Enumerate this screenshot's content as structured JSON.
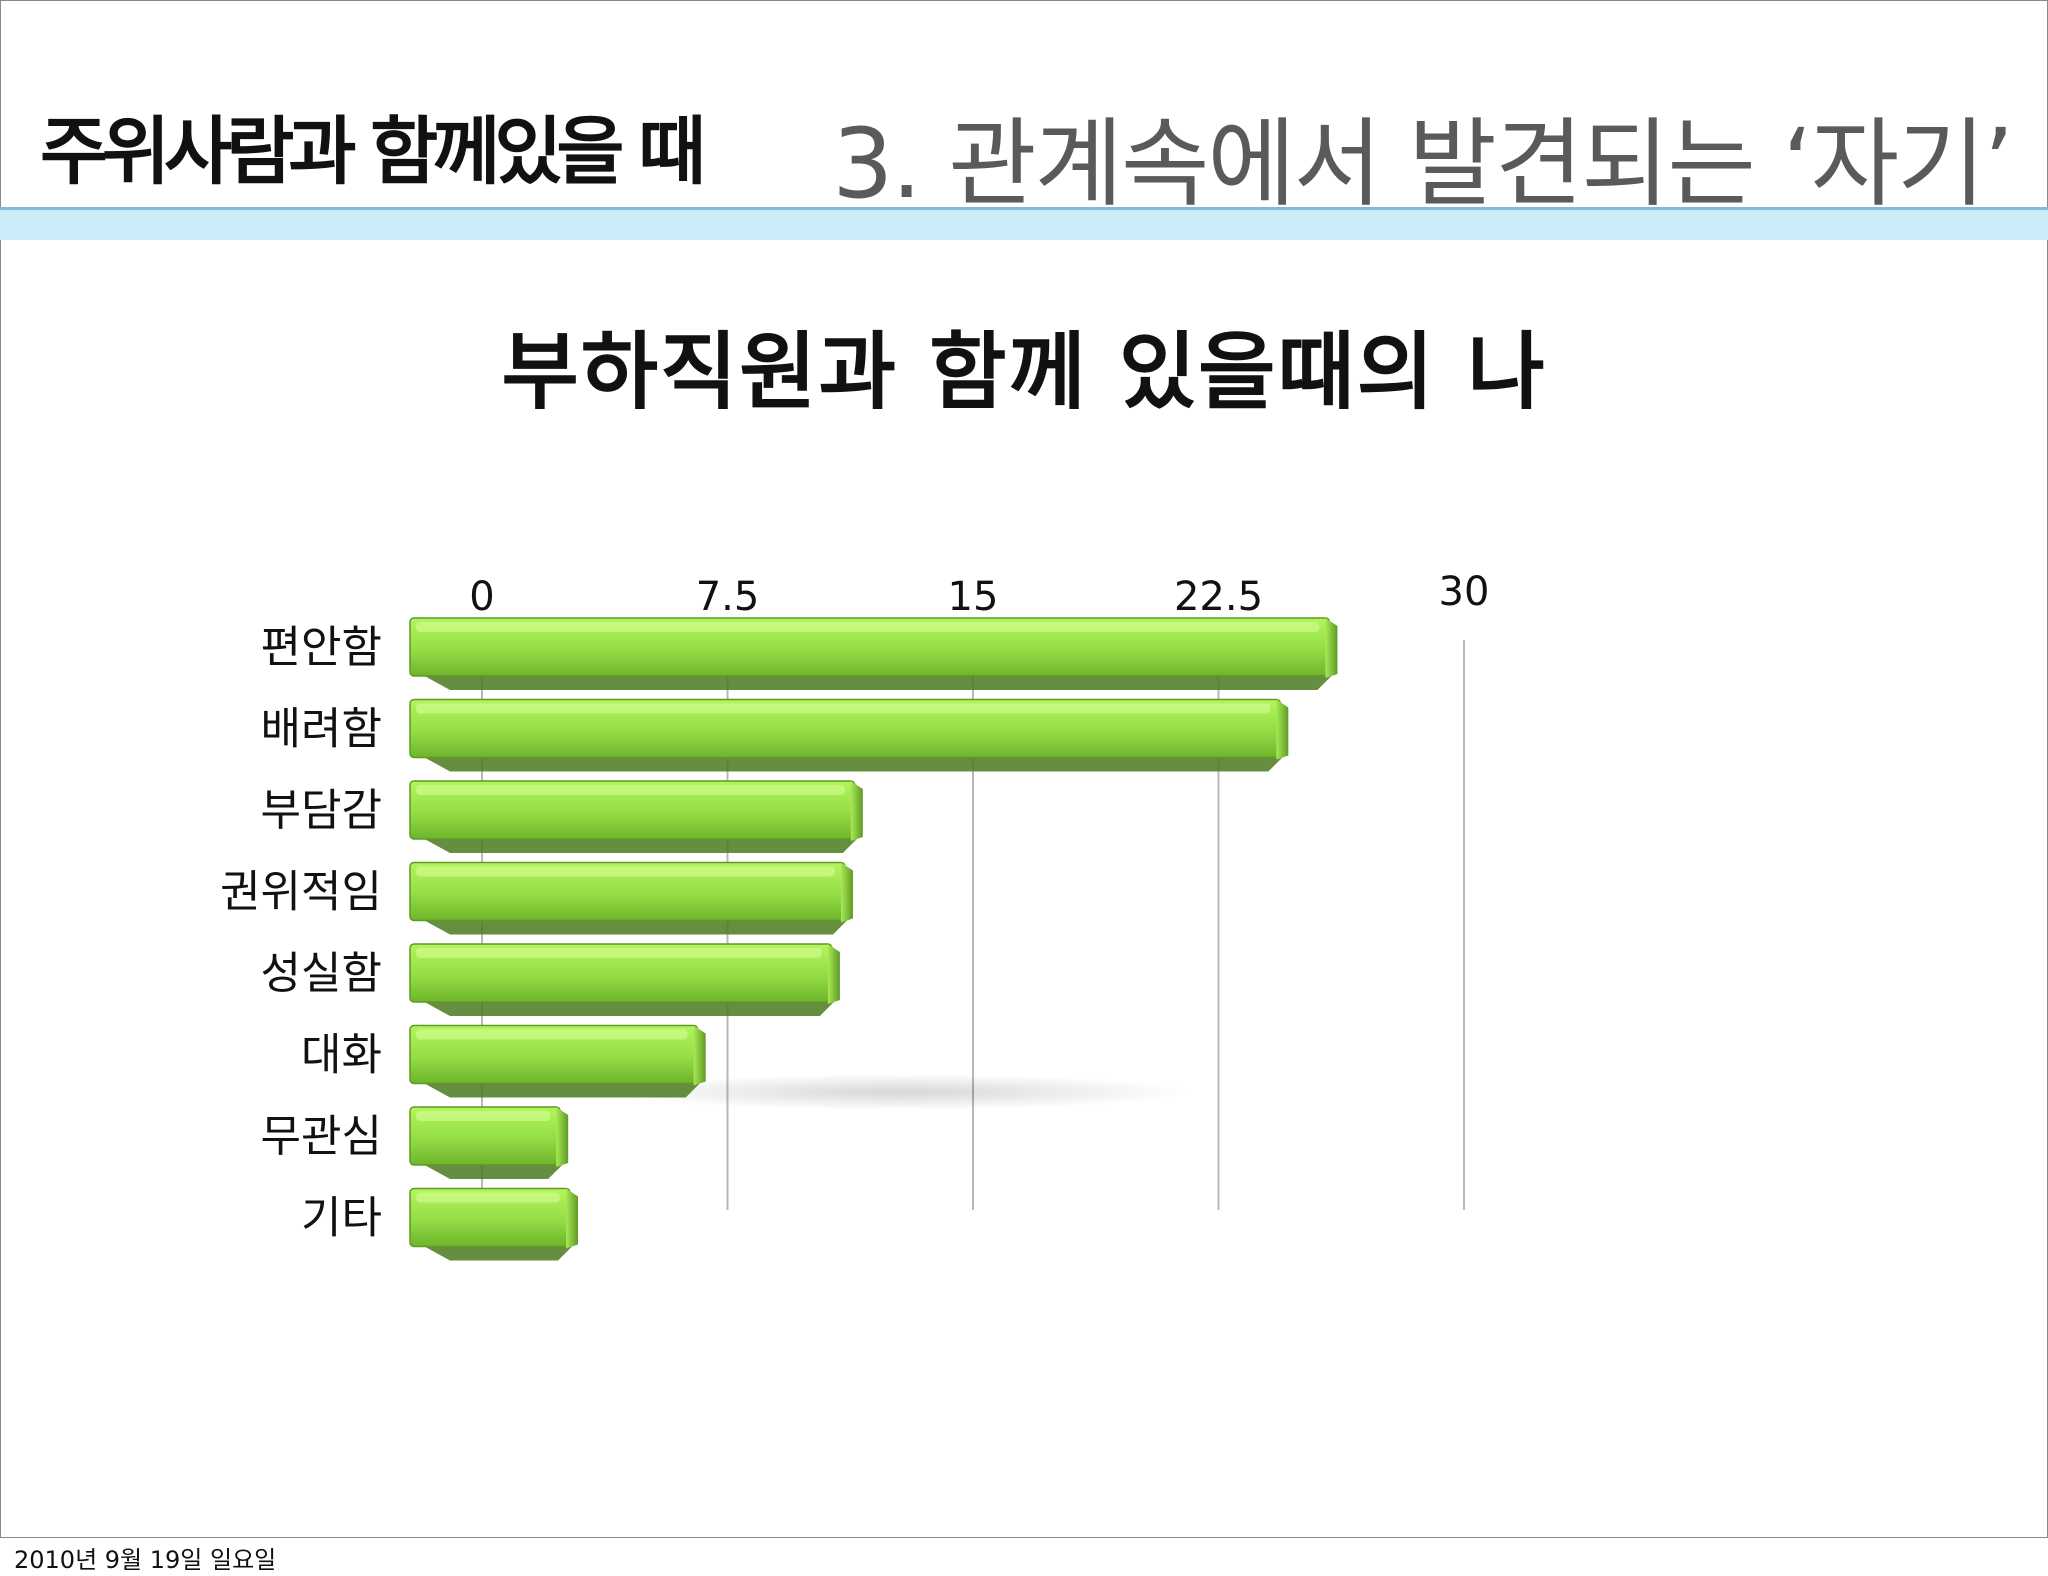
{
  "header": {
    "left_title": "주위사람과 함께있을 때",
    "right_title": "3. 관계속에서 발견되는 ‘자기’"
  },
  "footer": {
    "date": "2010년 9월 19일 일요일"
  },
  "colors": {
    "bar_top": "#c2ff6e",
    "bar_main": "#8fd63d",
    "bar_dark": "#4a7a1e",
    "grid": "#b8b8b8",
    "header_band": "#c9ecf8",
    "header_rule": "#7fbcd6"
  },
  "chart_data": {
    "type": "bar",
    "orientation": "horizontal",
    "title": "부하직원과 함께 있을때의 나",
    "categories": [
      "편안함",
      "배려함",
      "부담감",
      "권위적임",
      "성실함",
      "대화",
      "무관심",
      "기타"
    ],
    "values": [
      26.5,
      25,
      12,
      11.7,
      11.3,
      7.2,
      3,
      3.3
    ],
    "ticks": [
      "0",
      "7.5",
      "15",
      "22.5",
      "30"
    ],
    "xlim": [
      0,
      30
    ],
    "grid": true,
    "legend": "none"
  }
}
